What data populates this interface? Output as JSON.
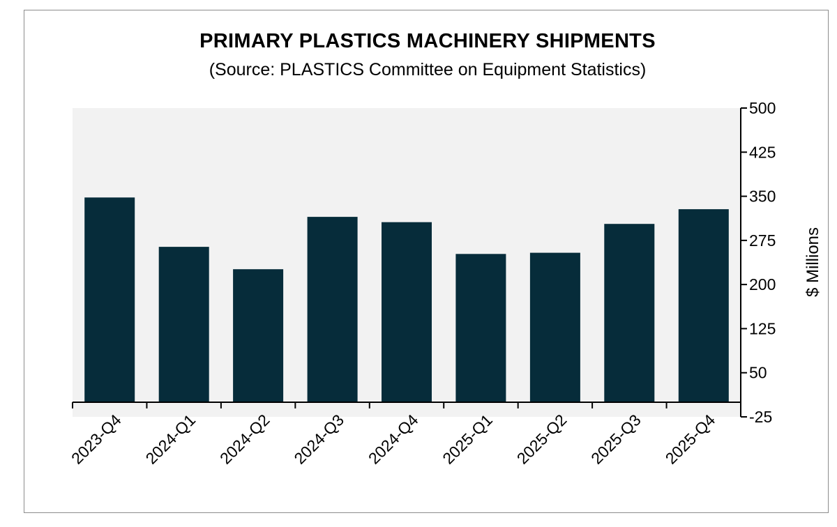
{
  "chart_data": {
    "type": "bar",
    "title": "PRIMARY PLASTICS MACHINERY SHIPMENTS",
    "subtitle": "(Source: PLASTICS Committee on Equipment Statistics)",
    "categories": [
      "2023-Q4",
      "2024-Q1",
      "2024-Q2",
      "2024-Q3",
      "2024-Q4",
      "2025-Q1",
      "2025-Q2",
      "2025-Q3",
      "2025-Q4"
    ],
    "series": [
      {
        "values": [
          348,
          264,
          226,
          315,
          306,
          252,
          254,
          303,
          328
        ]
      }
    ],
    "xlabel": "",
    "ylabel": "$ Millions",
    "ylim": [
      -25,
      500
    ],
    "yticks": [
      500,
      425,
      350,
      275,
      200,
      125,
      50,
      -25
    ],
    "y_axis_position": "right",
    "grid": false,
    "legend": "none",
    "colors": {
      "bar": "#062c3a",
      "plot_background": "#f2f2f2",
      "axis": "#000000"
    }
  }
}
